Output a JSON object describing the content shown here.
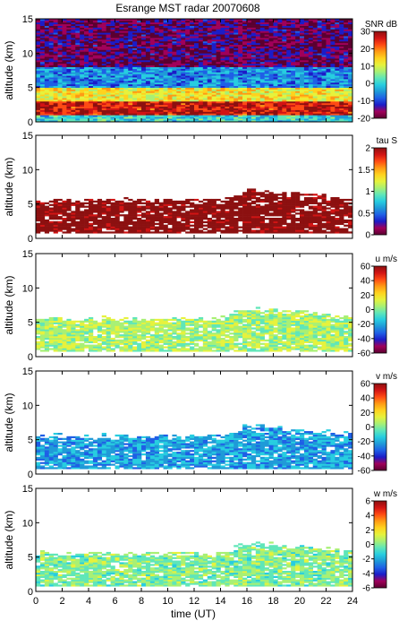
{
  "figure": {
    "title": "Esrange MST radar 20070608",
    "x_axis_label": "time (UT)"
  },
  "palette": [
    "#5a0030",
    "#a0005a",
    "#1c1cc8",
    "#1f5fe6",
    "#1f9ad8",
    "#27cde0",
    "#5fe6b8",
    "#a8f074",
    "#e6f23c",
    "#ffd21e",
    "#ff9a14",
    "#ff4a14",
    "#d21414",
    "#8c1010"
  ],
  "chart_data": [
    {
      "type": "heatmap",
      "panel": "snr",
      "colorbar_label": "SNR dB",
      "colorbar_ticks": [
        "30",
        "20",
        "10",
        "0",
        "-10",
        "-20"
      ],
      "clim": [
        -20,
        30
      ],
      "ylabel": "altitude (km)",
      "ylim": [
        0,
        15
      ],
      "yticks": [
        "15",
        "10",
        "5",
        "0"
      ],
      "xlim": [
        0,
        24
      ],
      "xticks": [
        "0",
        "2",
        "4",
        "6",
        "8",
        "10",
        "12",
        "14",
        "16",
        "18",
        "20",
        "22",
        "24"
      ],
      "layers": [
        {
          "alt_range_km": [
            0,
            1
          ],
          "snr_db": 0
        },
        {
          "alt_range_km": [
            1,
            3
          ],
          "snr_db": 25
        },
        {
          "alt_range_km": [
            3,
            5
          ],
          "snr_db": 12
        },
        {
          "alt_range_km": [
            5,
            8
          ],
          "snr_db": -5
        },
        {
          "alt_range_km": [
            8,
            15
          ],
          "snr_db": -15
        }
      ]
    },
    {
      "type": "heatmap",
      "panel": "tau",
      "colorbar_label": "tau S",
      "colorbar_ticks": [
        "2",
        "1.5",
        "1",
        "0.5",
        "0"
      ],
      "clim": [
        0,
        2
      ],
      "ylabel": "altitude (km)",
      "ylim": [
        0,
        15
      ],
      "yticks": [
        "15",
        "10",
        "5",
        "0"
      ],
      "xlim": [
        0,
        24
      ],
      "xticks": [
        "0",
        "2",
        "4",
        "6",
        "8",
        "10",
        "12",
        "14",
        "16",
        "18",
        "20",
        "22",
        "24"
      ],
      "echo_top_km": [
        {
          "t": 0,
          "alt": 5.5
        },
        {
          "t": 14,
          "alt": 5.5
        },
        {
          "t": 16,
          "alt": 7.0
        },
        {
          "t": 20,
          "alt": 6.5
        },
        {
          "t": 24,
          "alt": 5.8
        }
      ],
      "dominant_value": 2
    },
    {
      "type": "heatmap",
      "panel": "u",
      "colorbar_label": "u m/s",
      "colorbar_ticks": [
        "60",
        "40",
        "20",
        "0",
        "-20",
        "-40",
        "-60"
      ],
      "clim": [
        -60,
        60
      ],
      "ylabel": "altitude (km)",
      "ylim": [
        0,
        15
      ],
      "yticks": [
        "15",
        "10",
        "5",
        "0"
      ],
      "xlim": [
        0,
        24
      ],
      "xticks": [
        "0",
        "2",
        "4",
        "6",
        "8",
        "10",
        "12",
        "14",
        "16",
        "18",
        "20",
        "22",
        "24"
      ],
      "echo_top_km": [
        {
          "t": 0,
          "alt": 5.5
        },
        {
          "t": 14,
          "alt": 5.5
        },
        {
          "t": 16,
          "alt": 7.0
        },
        {
          "t": 20,
          "alt": 6.5
        },
        {
          "t": 24,
          "alt": 5.8
        }
      ],
      "dominant_value": 5
    },
    {
      "type": "heatmap",
      "panel": "v",
      "colorbar_label": "v m/s",
      "colorbar_ticks": [
        "60",
        "40",
        "20",
        "0",
        "-20",
        "-40",
        "-60"
      ],
      "clim": [
        -60,
        60
      ],
      "ylabel": "altitude (km)",
      "ylim": [
        0,
        15
      ],
      "yticks": [
        "15",
        "10",
        "5",
        "0"
      ],
      "xlim": [
        0,
        24
      ],
      "xticks": [
        "0",
        "2",
        "4",
        "6",
        "8",
        "10",
        "12",
        "14",
        "16",
        "18",
        "20",
        "22",
        "24"
      ],
      "echo_top_km": [
        {
          "t": 0,
          "alt": 5.5
        },
        {
          "t": 14,
          "alt": 5.5
        },
        {
          "t": 16,
          "alt": 7.0
        },
        {
          "t": 20,
          "alt": 6.5
        },
        {
          "t": 24,
          "alt": 5.8
        }
      ],
      "dominant_value": -20
    },
    {
      "type": "heatmap",
      "panel": "w",
      "colorbar_label": "w m/s",
      "colorbar_ticks": [
        "6",
        "4",
        "2",
        "0",
        "-2",
        "-4",
        "-6"
      ],
      "clim": [
        -6,
        6
      ],
      "ylabel": "altitude (km)",
      "ylim": [
        0,
        15
      ],
      "yticks": [
        "15",
        "10",
        "5",
        "0"
      ],
      "xlim": [
        0,
        24
      ],
      "xticks": [
        "0",
        "2",
        "4",
        "6",
        "8",
        "10",
        "12",
        "14",
        "16",
        "18",
        "20",
        "22",
        "24"
      ],
      "echo_top_km": [
        {
          "t": 0,
          "alt": 5.5
        },
        {
          "t": 14,
          "alt": 5.5
        },
        {
          "t": 16,
          "alt": 7.0
        },
        {
          "t": 20,
          "alt": 6.5
        },
        {
          "t": 24,
          "alt": 5.8
        }
      ],
      "dominant_value": 0
    }
  ]
}
